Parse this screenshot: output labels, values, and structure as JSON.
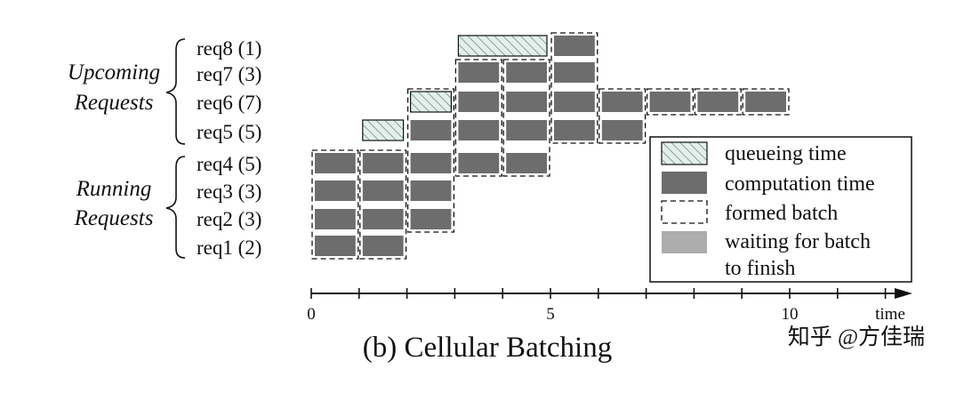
{
  "groups": [
    {
      "line1": "Upcoming",
      "line2": "Requests"
    },
    {
      "line1": "Running",
      "line2": "Requests"
    }
  ],
  "requests": [
    "req8 (1)",
    "req7 (3)",
    "req6 (7)",
    "req5 (5)",
    "req4 (5)",
    "req3 (3)",
    "req2 (3)",
    "req1 (2)"
  ],
  "axis": {
    "ticks": [
      "0",
      "5",
      "10"
    ],
    "tick_values": [
      0,
      5,
      10
    ],
    "label": "time",
    "range": [
      0,
      12
    ]
  },
  "cells": [
    {
      "req": "req8 (1)",
      "start": 3,
      "end": 5,
      "kind": "queue"
    },
    {
      "req": "req8 (1)",
      "start": 5,
      "end": 6,
      "kind": "compute"
    },
    {
      "req": "req7 (3)",
      "start": 3,
      "end": 4,
      "kind": "compute"
    },
    {
      "req": "req7 (3)",
      "start": 4,
      "end": 5,
      "kind": "compute"
    },
    {
      "req": "req7 (3)",
      "start": 5,
      "end": 6,
      "kind": "compute"
    },
    {
      "req": "req6 (7)",
      "start": 2,
      "end": 3,
      "kind": "queue"
    },
    {
      "req": "req6 (7)",
      "start": 3,
      "end": 4,
      "kind": "compute"
    },
    {
      "req": "req6 (7)",
      "start": 4,
      "end": 5,
      "kind": "compute"
    },
    {
      "req": "req6 (7)",
      "start": 5,
      "end": 6,
      "kind": "compute"
    },
    {
      "req": "req6 (7)",
      "start": 6,
      "end": 7,
      "kind": "compute"
    },
    {
      "req": "req6 (7)",
      "start": 7,
      "end": 8,
      "kind": "compute"
    },
    {
      "req": "req6 (7)",
      "start": 8,
      "end": 9,
      "kind": "compute"
    },
    {
      "req": "req6 (7)",
      "start": 9,
      "end": 10,
      "kind": "compute"
    },
    {
      "req": "req5 (5)",
      "start": 1,
      "end": 2,
      "kind": "queue"
    },
    {
      "req": "req5 (5)",
      "start": 2,
      "end": 3,
      "kind": "compute"
    },
    {
      "req": "req5 (5)",
      "start": 3,
      "end": 4,
      "kind": "compute"
    },
    {
      "req": "req5 (5)",
      "start": 4,
      "end": 5,
      "kind": "compute"
    },
    {
      "req": "req5 (5)",
      "start": 5,
      "end": 6,
      "kind": "compute"
    },
    {
      "req": "req5 (5)",
      "start": 6,
      "end": 7,
      "kind": "compute"
    },
    {
      "req": "req4 (5)",
      "start": 0,
      "end": 1,
      "kind": "compute"
    },
    {
      "req": "req4 (5)",
      "start": 1,
      "end": 2,
      "kind": "compute"
    },
    {
      "req": "req4 (5)",
      "start": 2,
      "end": 3,
      "kind": "compute"
    },
    {
      "req": "req4 (5)",
      "start": 3,
      "end": 4,
      "kind": "compute"
    },
    {
      "req": "req4 (5)",
      "start": 4,
      "end": 5,
      "kind": "compute"
    },
    {
      "req": "req3 (3)",
      "start": 0,
      "end": 1,
      "kind": "compute"
    },
    {
      "req": "req3 (3)",
      "start": 1,
      "end": 2,
      "kind": "compute"
    },
    {
      "req": "req3 (3)",
      "start": 2,
      "end": 3,
      "kind": "compute"
    },
    {
      "req": "req2 (3)",
      "start": 0,
      "end": 1,
      "kind": "compute"
    },
    {
      "req": "req2 (3)",
      "start": 1,
      "end": 2,
      "kind": "compute"
    },
    {
      "req": "req2 (3)",
      "start": 2,
      "end": 3,
      "kind": "compute"
    },
    {
      "req": "req1 (2)",
      "start": 0,
      "end": 1,
      "kind": "compute"
    },
    {
      "req": "req1 (2)",
      "start": 1,
      "end": 2,
      "kind": "compute"
    }
  ],
  "batches": [
    {
      "start": 0,
      "end": 1,
      "top": "req4 (5)",
      "bottom": "req1 (2)"
    },
    {
      "start": 1,
      "end": 2,
      "top": "req4 (5)",
      "bottom": "req1 (2)"
    },
    {
      "start": 2,
      "end": 3,
      "top": "req6 (7)",
      "bottom": "req2 (3)"
    },
    {
      "start": 3,
      "end": 4,
      "top": "req7 (3)",
      "bottom": "req4 (5)"
    },
    {
      "start": 4,
      "end": 5,
      "top": "req7 (3)",
      "bottom": "req4 (5)"
    },
    {
      "start": 5,
      "end": 6,
      "top": "req8 (1)",
      "bottom": "req5 (5)"
    },
    {
      "start": 6,
      "end": 7,
      "top": "req6 (7)",
      "bottom": "req5 (5)"
    },
    {
      "start": 7,
      "end": 8,
      "top": "req6 (7)",
      "bottom": "req6 (7)"
    },
    {
      "start": 8,
      "end": 9,
      "top": "req6 (7)",
      "bottom": "req6 (7)"
    },
    {
      "start": 9,
      "end": 10,
      "top": "req6 (7)",
      "bottom": "req6 (7)"
    }
  ],
  "legend": {
    "items": [
      {
        "kind": "queue",
        "line1": "queueing time",
        "line2": ""
      },
      {
        "kind": "compute",
        "line1": "computation time",
        "line2": ""
      },
      {
        "kind": "batch",
        "line1": "formed batch",
        "line2": ""
      },
      {
        "kind": "waiting",
        "line1": "waiting for batch",
        "line2": "to finish"
      }
    ]
  },
  "caption": "(b) Cellular Batching",
  "watermark": "知乎 @方佳瑞",
  "colors": {
    "compute": "#6d6d6d",
    "queue_fill": "#e4efec",
    "queue_hatch": "#6f8f88",
    "waiting": "#adadad",
    "ink": "#111111"
  }
}
